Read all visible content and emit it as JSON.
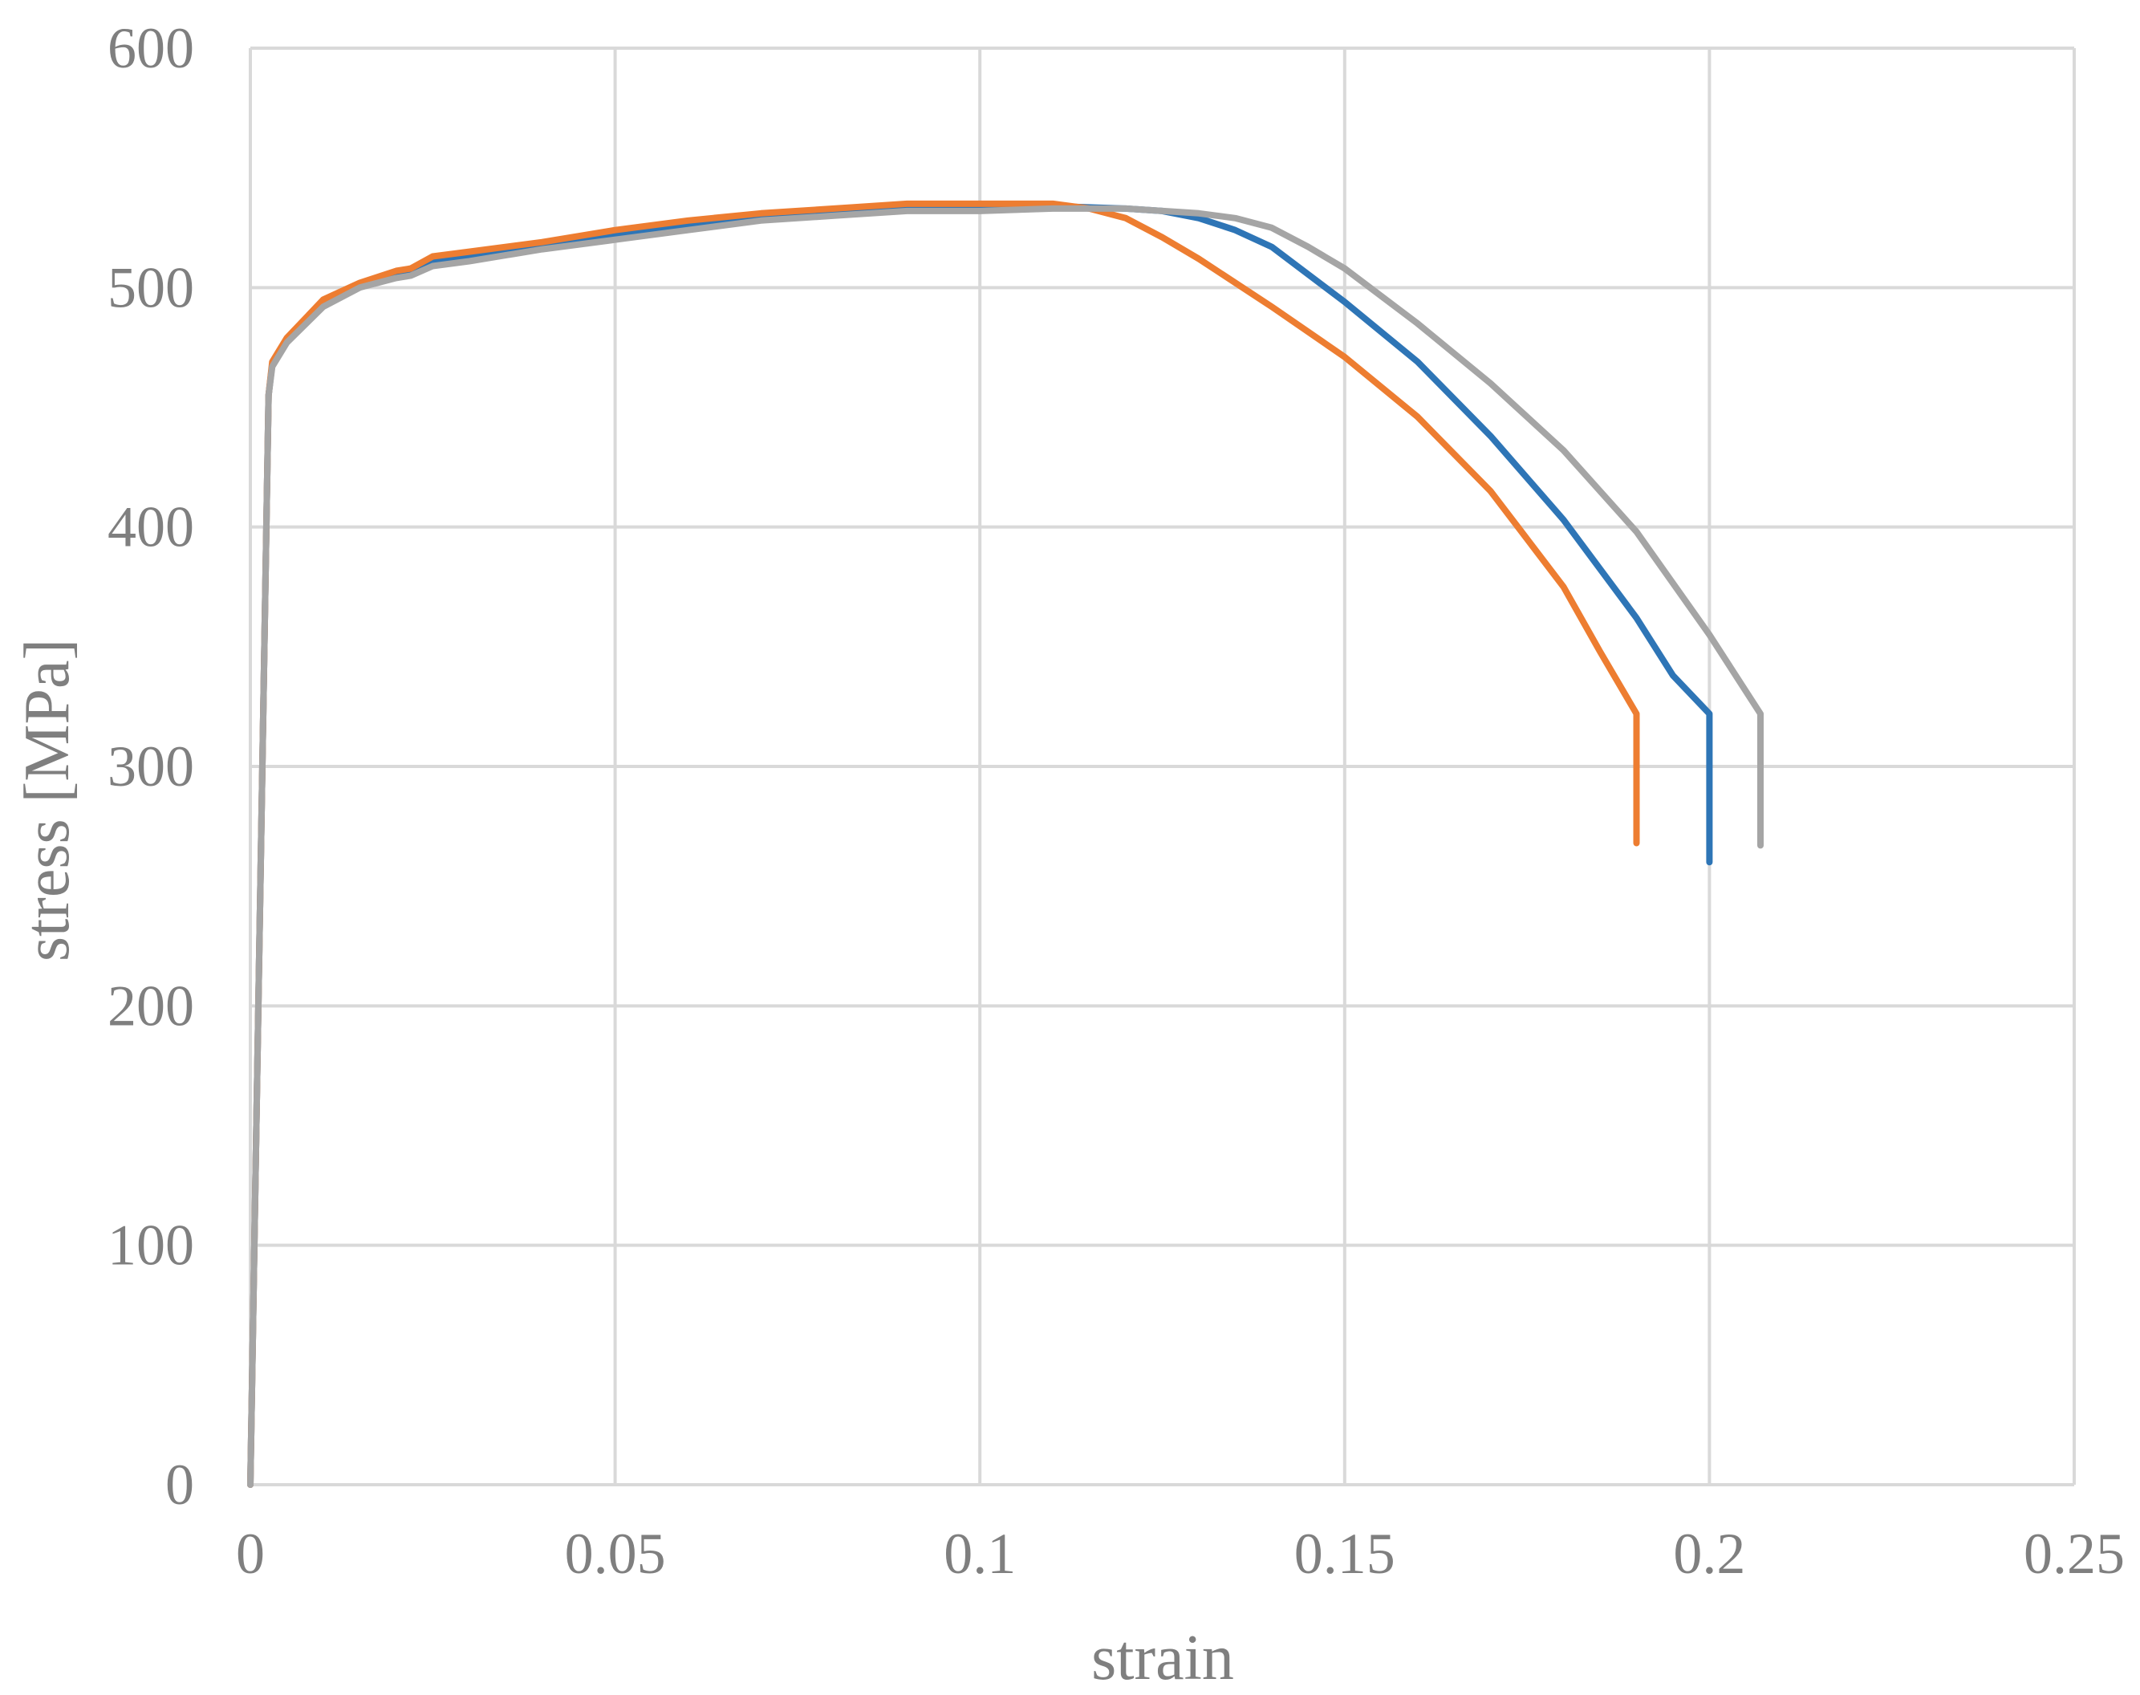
{
  "chart_data": {
    "type": "line",
    "title": "",
    "xlabel": "strain",
    "ylabel": "stress [MPa]",
    "xlim": [
      0,
      0.25
    ],
    "ylim": [
      0,
      600
    ],
    "x_ticks": [
      0,
      0.05,
      0.1,
      0.15,
      0.2,
      0.25
    ],
    "x_tick_labels": [
      "0",
      "0.05",
      "0.1",
      "0.15",
      "0.2",
      "0.25"
    ],
    "y_ticks": [
      0,
      100,
      200,
      300,
      400,
      500,
      600
    ],
    "y_tick_labels": [
      "0",
      "100",
      "200",
      "300",
      "400",
      "500",
      "600"
    ],
    "grid": true,
    "legend": "none",
    "series": [
      {
        "color": "#2e75b6",
        "x": [
          0,
          0.0025,
          0.003,
          0.005,
          0.01,
          0.015,
          0.02,
          0.022,
          0.025,
          0.03,
          0.04,
          0.05,
          0.06,
          0.07,
          0.08,
          0.09,
          0.1,
          0.11,
          0.12,
          0.125,
          0.13,
          0.135,
          0.14,
          0.15,
          0.16,
          0.17,
          0.18,
          0.19,
          0.195,
          0.2,
          0.2,
          0.2
        ],
        "y": [
          0,
          455,
          468,
          478,
          494,
          501,
          505,
          506,
          511,
          513,
          518,
          522,
          526,
          529,
          532,
          533,
          534,
          534,
          533,
          532,
          529,
          524,
          517,
          494,
          469,
          438,
          403,
          362,
          338,
          322,
          290,
          260
        ]
      },
      {
        "color": "#ed7d31",
        "x": [
          0,
          0.0025,
          0.003,
          0.005,
          0.01,
          0.015,
          0.02,
          0.022,
          0.025,
          0.03,
          0.04,
          0.05,
          0.06,
          0.07,
          0.08,
          0.09,
          0.1,
          0.11,
          0.115,
          0.12,
          0.125,
          0.13,
          0.14,
          0.15,
          0.16,
          0.17,
          0.18,
          0.185,
          0.19,
          0.19,
          0.19
        ],
        "y": [
          0,
          455,
          469,
          479,
          495,
          502,
          507,
          508,
          513,
          515,
          519,
          524,
          528,
          531,
          533,
          535,
          535,
          535,
          533,
          529,
          521,
          512,
          492,
          471,
          446,
          415,
          375,
          348,
          322,
          290,
          268
        ]
      },
      {
        "color": "#a5a5a5",
        "x": [
          0,
          0.0025,
          0.003,
          0.005,
          0.01,
          0.015,
          0.02,
          0.022,
          0.025,
          0.03,
          0.04,
          0.05,
          0.06,
          0.07,
          0.08,
          0.09,
          0.1,
          0.11,
          0.12,
          0.13,
          0.135,
          0.14,
          0.145,
          0.15,
          0.16,
          0.17,
          0.18,
          0.19,
          0.2,
          0.207,
          0.207,
          0.207
        ],
        "y": [
          0,
          455,
          467,
          477,
          492,
          500,
          504,
          505,
          509,
          511,
          516,
          520,
          524,
          528,
          530,
          532,
          532,
          533,
          533,
          531,
          529,
          525,
          517,
          508,
          485,
          460,
          432,
          398,
          355,
          322,
          290,
          267
        ]
      }
    ]
  }
}
